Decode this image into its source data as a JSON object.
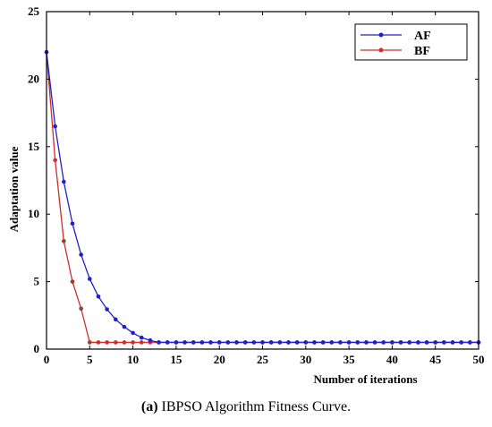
{
  "chart_data": {
    "type": "line",
    "title": "",
    "xlabel": "Number of iterations",
    "ylabel": "Adaptation value",
    "xlim": [
      0,
      50
    ],
    "ylim": [
      0,
      25
    ],
    "xticks": [
      "0",
      "5",
      "10",
      "15",
      "20",
      "25",
      "30",
      "35",
      "40",
      "45",
      "50"
    ],
    "yticks": [
      "0",
      "5",
      "10",
      "15",
      "20",
      "25"
    ],
    "grid": false,
    "legend_position": "top-right",
    "x": [
      0,
      1,
      2,
      3,
      4,
      5,
      6,
      7,
      8,
      9,
      10,
      11,
      12,
      13,
      14,
      15,
      16,
      17,
      18,
      19,
      20,
      21,
      22,
      23,
      24,
      25,
      26,
      27,
      28,
      29,
      30,
      31,
      32,
      33,
      34,
      35,
      36,
      37,
      38,
      39,
      40,
      41,
      42,
      43,
      44,
      45,
      46,
      47,
      48,
      49,
      50
    ],
    "series": [
      {
        "name": "AF",
        "color": "#1f1fcf",
        "values": [
          22,
          16.5,
          12.4,
          9.3,
          7.0,
          5.2,
          3.9,
          2.95,
          2.2,
          1.65,
          1.2,
          0.85,
          0.65,
          0.5,
          0.5,
          0.5,
          0.5,
          0.5,
          0.5,
          0.5,
          0.5,
          0.5,
          0.5,
          0.5,
          0.5,
          0.5,
          0.5,
          0.5,
          0.5,
          0.5,
          0.5,
          0.5,
          0.5,
          0.5,
          0.5,
          0.5,
          0.5,
          0.5,
          0.5,
          0.5,
          0.5,
          0.5,
          0.5,
          0.5,
          0.5,
          0.5,
          0.5,
          0.5,
          0.5,
          0.5,
          0.5
        ]
      },
      {
        "name": "BF",
        "color": "#d42a2a",
        "values": [
          22,
          14,
          8,
          5,
          3,
          0.5,
          0.5,
          0.5,
          0.5,
          0.5,
          0.5,
          0.5,
          0.5,
          0.5,
          0.5,
          0.5,
          0.5,
          0.5,
          0.5,
          0.5,
          0.5,
          0.5,
          0.5,
          0.5,
          0.5,
          0.5,
          0.5,
          0.5,
          0.5,
          0.5,
          0.5,
          0.5,
          0.5,
          0.5,
          0.5,
          0.5,
          0.5,
          0.5,
          0.5,
          0.5,
          0.5,
          0.5,
          0.5,
          0.5,
          0.5,
          0.5,
          0.5,
          0.5,
          0.5,
          0.5,
          0.5
        ]
      }
    ]
  },
  "caption": {
    "label": "(a)",
    "text": " IBPSO Algorithm Fitness Curve."
  }
}
